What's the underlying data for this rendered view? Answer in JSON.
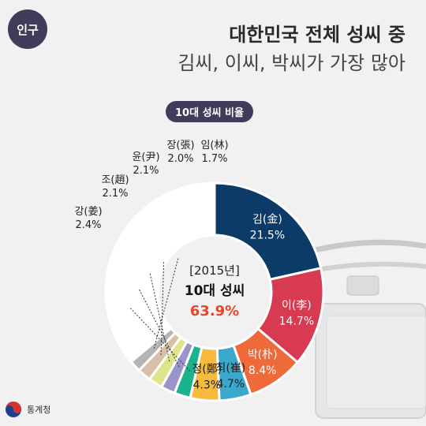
{
  "header": {
    "category": "인구",
    "title": "대한민국 전체 성씨 중",
    "subtitle": "김씨, 이씨, 박씨가 가장 많아"
  },
  "pill_label": "10대 성씨 비율",
  "footer": {
    "org": "통계청"
  },
  "chart_data": {
    "type": "pie",
    "style": "donut",
    "title": "10대 성씨 비율",
    "center": {
      "year": "[2015년]",
      "label": "10대 성씨",
      "value": "63.9%"
    },
    "slices": [
      {
        "name": "김(金)",
        "value": 21.5,
        "value_label": "21.5%",
        "color": "#0b3b66"
      },
      {
        "name": "이(李)",
        "value": 14.7,
        "value_label": "14.7%",
        "color": "#d83a52"
      },
      {
        "name": "박(朴)",
        "value": 8.4,
        "value_label": "8.4%",
        "color": "#ee6a3b"
      },
      {
        "name": "최(崔)",
        "value": 4.7,
        "value_label": "4.7%",
        "color": "#3aa8cd"
      },
      {
        "name": "정(鄭)",
        "value": 4.3,
        "value_label": "4.3%",
        "color": "#f8ba3a"
      },
      {
        "name": "강(姜)",
        "value": 2.4,
        "value_label": "2.4%",
        "color": "#1bb38e"
      },
      {
        "name": "조(趙)",
        "value": 2.1,
        "value_label": "2.1%",
        "color": "#9a94c8"
      },
      {
        "name": "윤(尹)",
        "value": 2.1,
        "value_label": "2.1%",
        "color": "#dde48c"
      },
      {
        "name": "장(張)",
        "value": 2.0,
        "value_label": "2.0%",
        "color": "#d6c0a6"
      },
      {
        "name": "임(林)",
        "value": 1.7,
        "value_label": "1.7%",
        "color": "#b4b4b4"
      }
    ],
    "other_color": "#ffffff"
  },
  "colors": {
    "accent": "#e8452a",
    "badge": "#3f3d5a"
  }
}
